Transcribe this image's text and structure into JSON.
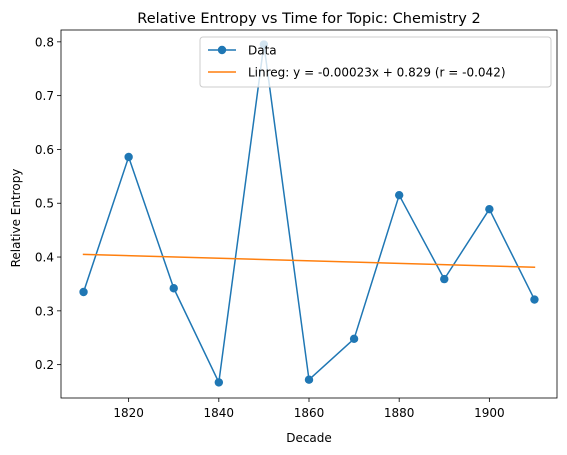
{
  "chart_data": {
    "type": "line",
    "title": "Relative Entropy vs Time for Topic: Chemistry 2",
    "xlabel": "Decade",
    "ylabel": "Relative Entropy",
    "xlim": [
      1805,
      1915
    ],
    "ylim": [
      0.138,
      0.822
    ],
    "xticks": [
      1820,
      1840,
      1860,
      1880,
      1900
    ],
    "yticks": [
      0.2,
      0.3,
      0.4,
      0.5,
      0.6,
      0.7,
      0.8
    ],
    "grid": false,
    "legend_position": "top-right",
    "series": [
      {
        "name": "Data",
        "style": "line-with-markers",
        "color": "#1f77b4",
        "x": [
          1810,
          1820,
          1830,
          1840,
          1850,
          1860,
          1870,
          1880,
          1890,
          1900,
          1910
        ],
        "y": [
          0.335,
          0.586,
          0.342,
          0.167,
          0.795,
          0.172,
          0.248,
          0.515,
          0.359,
          0.489,
          0.321
        ]
      },
      {
        "name": "Linreg: y = -0.00023x + 0.829 (r = -0.042)",
        "style": "line",
        "color": "#ff7f0e",
        "x": [
          1810,
          1910
        ],
        "y": [
          0.405,
          0.381
        ]
      }
    ]
  }
}
